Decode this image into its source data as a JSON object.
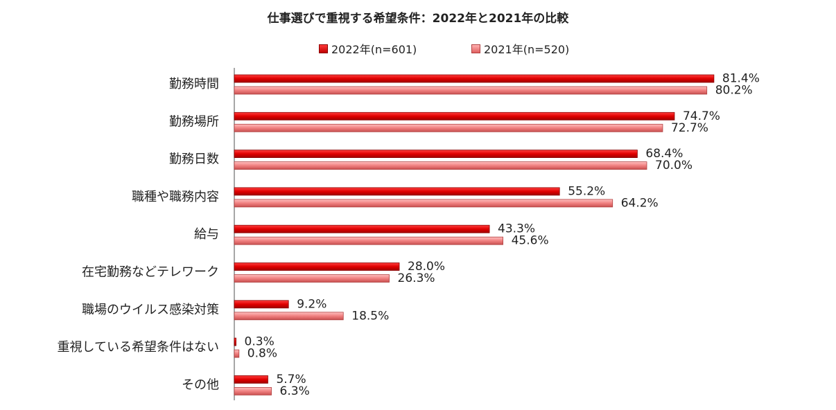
{
  "chart_data": {
    "type": "bar",
    "orientation": "horizontal",
    "title": "仕事選びで重視する希望条件：2022年と2021年の比較",
    "categories": [
      "勤務時間",
      "勤務場所",
      "勤務日数",
      "職種や職務内容",
      "給与",
      "在宅勤務などテレワーク",
      "職場のウイルス感染対策",
      "重視している希望条件はない",
      "その他"
    ],
    "series": [
      {
        "name": "2022年(n=601)",
        "color": "#e00000",
        "values": [
          81.4,
          74.7,
          68.4,
          55.2,
          43.3,
          28.0,
          9.2,
          0.3,
          5.7
        ],
        "labels": [
          "81.4%",
          "74.7%",
          "68.4%",
          "55.2%",
          "43.3%",
          "28.0%",
          "9.2%",
          "0.3%",
          "5.7%"
        ]
      },
      {
        "name": "2021年(n=520)",
        "color": "#f08080",
        "values": [
          80.2,
          72.7,
          70.0,
          64.2,
          45.6,
          26.3,
          18.5,
          0.8,
          6.3
        ],
        "labels": [
          "80.2%",
          "72.7%",
          "70.0%",
          "64.2%",
          "45.6%",
          "26.3%",
          "18.5%",
          "0.8%",
          "6.3%"
        ]
      }
    ],
    "xlim": [
      0,
      100
    ],
    "grid": false,
    "legend_position": "top"
  }
}
